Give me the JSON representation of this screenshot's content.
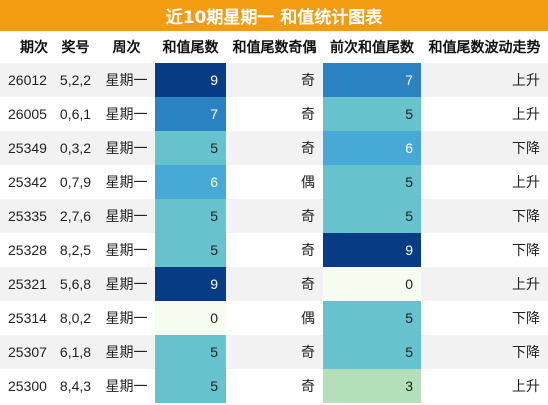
{
  "title": "近10期星期一 和值统计图表",
  "headers": [
    "期次",
    "奖号",
    "周次",
    "和值尾数",
    "和值尾数奇偶",
    "前次和值尾数",
    "和值尾数波动走势"
  ],
  "rows": [
    {
      "issue": "26012",
      "prize": "5,2,2",
      "weekday": "星期一",
      "tail": "9",
      "parity": "奇",
      "prev_tail": "7",
      "trend": "上升",
      "tail_bg": "#083d85",
      "tail_fg": "#ffffff",
      "prev_bg": "#2b82c2",
      "prev_fg": "#ffffff"
    },
    {
      "issue": "26005",
      "prize": "0,6,1",
      "weekday": "星期一",
      "tail": "7",
      "parity": "奇",
      "prev_tail": "5",
      "trend": "上升",
      "tail_bg": "#2b82c2",
      "tail_fg": "#ffffff",
      "prev_bg": "#66c2cc",
      "prev_fg": "#222222"
    },
    {
      "issue": "25349",
      "prize": "0,3,2",
      "weekday": "星期一",
      "tail": "5",
      "parity": "奇",
      "prev_tail": "6",
      "trend": "下降",
      "tail_bg": "#66c2cc",
      "tail_fg": "#222222",
      "prev_bg": "#46a9d6",
      "prev_fg": "#ffffff"
    },
    {
      "issue": "25342",
      "prize": "0,7,9",
      "weekday": "星期一",
      "tail": "6",
      "parity": "偶",
      "prev_tail": "5",
      "trend": "上升",
      "tail_bg": "#46a9d6",
      "tail_fg": "#ffffff",
      "prev_bg": "#66c2cc",
      "prev_fg": "#222222"
    },
    {
      "issue": "25335",
      "prize": "2,7,6",
      "weekday": "星期一",
      "tail": "5",
      "parity": "奇",
      "prev_tail": "5",
      "trend": "下降",
      "tail_bg": "#66c2cc",
      "tail_fg": "#222222",
      "prev_bg": "#66c2cc",
      "prev_fg": "#222222"
    },
    {
      "issue": "25328",
      "prize": "8,2,5",
      "weekday": "星期一",
      "tail": "5",
      "parity": "奇",
      "prev_tail": "9",
      "trend": "下降",
      "tail_bg": "#66c2cc",
      "tail_fg": "#222222",
      "prev_bg": "#083d85",
      "prev_fg": "#ffffff"
    },
    {
      "issue": "25321",
      "prize": "5,6,8",
      "weekday": "星期一",
      "tail": "9",
      "parity": "奇",
      "prev_tail": "0",
      "trend": "上升",
      "tail_bg": "#083d85",
      "tail_fg": "#ffffff",
      "prev_bg": "#f7fcf0",
      "prev_fg": "#222222"
    },
    {
      "issue": "25314",
      "prize": "8,0,2",
      "weekday": "星期一",
      "tail": "0",
      "parity": "偶",
      "prev_tail": "5",
      "trend": "下降",
      "tail_bg": "#f7fcf0",
      "tail_fg": "#222222",
      "prev_bg": "#66c2cc",
      "prev_fg": "#222222"
    },
    {
      "issue": "25307",
      "prize": "6,1,8",
      "weekday": "星期一",
      "tail": "5",
      "parity": "奇",
      "prev_tail": "5",
      "trend": "下降",
      "tail_bg": "#66c2cc",
      "tail_fg": "#222222",
      "prev_bg": "#66c2cc",
      "prev_fg": "#222222"
    },
    {
      "issue": "25300",
      "prize": "8,4,3",
      "weekday": "星期一",
      "tail": "5",
      "parity": "奇",
      "prev_tail": "3",
      "trend": "上升",
      "tail_bg": "#66c2cc",
      "tail_fg": "#222222",
      "prev_bg": "#b3e0b8",
      "prev_fg": "#222222"
    }
  ]
}
